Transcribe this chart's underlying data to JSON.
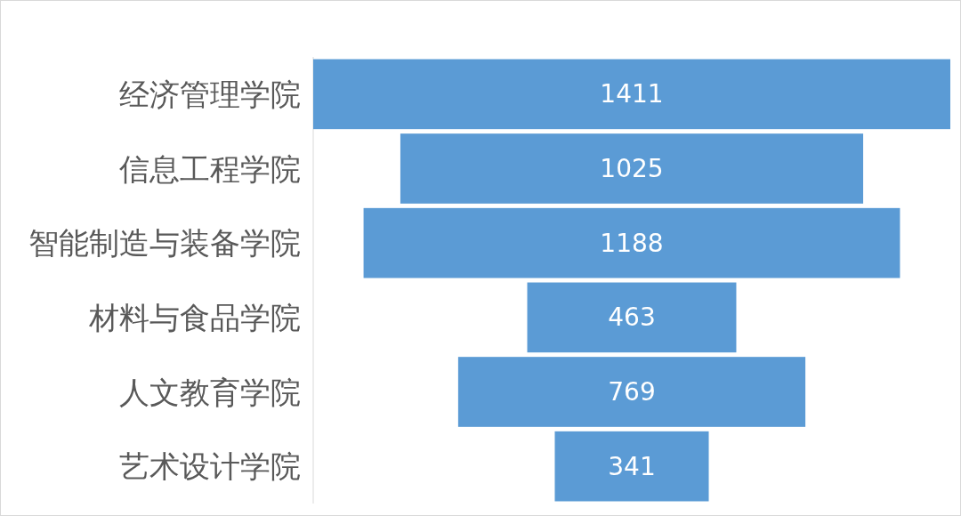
{
  "chart_data": {
    "type": "other",
    "categories": [
      "经济管理学院",
      "信息工程学院",
      "智能制造与装备学院",
      "材料与食品学院",
      "人文教育学院",
      "艺术设计学院"
    ],
    "values": [
      1411,
      1025,
      1188,
      463,
      769,
      341
    ],
    "color": "#5b9bd5",
    "data_labels": true
  }
}
